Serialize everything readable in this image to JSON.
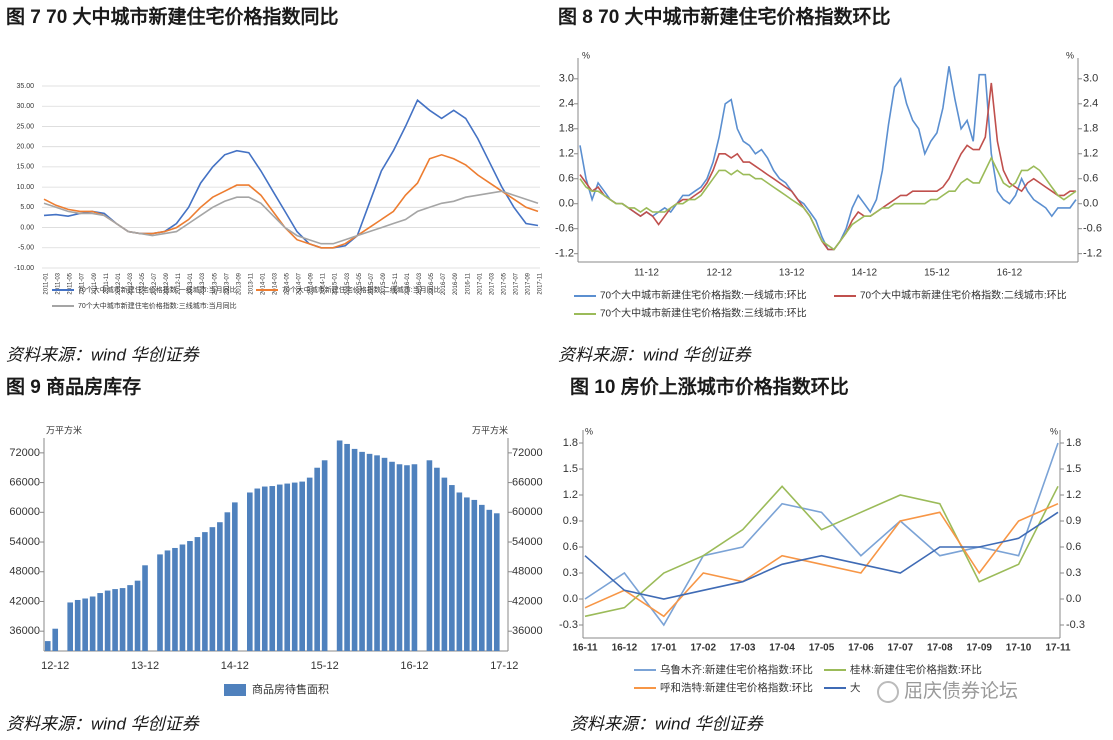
{
  "chart_data": [
    {
      "type": "line",
      "title": "图 7 70 大中城市新建住宅价格指数同比",
      "source": "资料来源：wind  华创证券",
      "grid": true,
      "categories": [
        "2011-01",
        "2011-03",
        "2011-05",
        "2011-07",
        "2011-09",
        "2011-11",
        "2012-01",
        "2012-03",
        "2012-05",
        "2012-07",
        "2012-09",
        "2012-11",
        "2013-01",
        "2013-03",
        "2013-05",
        "2013-07",
        "2013-09",
        "2013-11",
        "2014-01",
        "2014-03",
        "2014-05",
        "2014-07",
        "2014-09",
        "2014-11",
        "2015-01",
        "2015-03",
        "2015-05",
        "2015-07",
        "2015-09",
        "2015-11",
        "2016-01",
        "2016-03",
        "2016-05",
        "2016-07",
        "2016-09",
        "2016-11",
        "2017-01",
        "2017-03",
        "2017-05",
        "2017-07",
        "2017-09",
        "2017-11"
      ],
      "ylim": [
        -10,
        35
      ],
      "yticks": [
        {
          "value": -10,
          "label": "-10.00"
        },
        {
          "value": -5,
          "label": "-5.00"
        },
        {
          "value": 0,
          "label": "0.00"
        },
        {
          "value": 5,
          "label": "5.00"
        },
        {
          "value": 10,
          "label": "10.00"
        },
        {
          "value": 15,
          "label": "15.00"
        },
        {
          "value": 20,
          "label": "20.00"
        },
        {
          "value": 25,
          "label": "25.00"
        },
        {
          "value": 30,
          "label": "30.00"
        },
        {
          "value": 35,
          "label": "35.00"
        }
      ],
      "series": [
        {
          "name": "70个大中城市新建住宅价格指数:一线城市:当月同比",
          "color": "#4472c4",
          "values": [
            3,
            3.2,
            2.8,
            3.5,
            4,
            3.5,
            1,
            -1,
            -1.5,
            -1.5,
            -1,
            1,
            5,
            11,
            15,
            18,
            19,
            18.5,
            14,
            9,
            4,
            -1,
            -4,
            -5,
            -5,
            -4.5,
            -2,
            6,
            14,
            19,
            25,
            31.5,
            29,
            27,
            29,
            27,
            22,
            16,
            10,
            5,
            1,
            0.5
          ]
        },
        {
          "name": "70个大中城市新建住宅价格指数:二线城市:当月同比",
          "color": "#ed7d31",
          "values": [
            7,
            5.5,
            4.5,
            4,
            4,
            3,
            1,
            -1,
            -1.5,
            -1.5,
            -1,
            0,
            2,
            5,
            7.5,
            9,
            10.5,
            10.5,
            8,
            4,
            0,
            -3,
            -4,
            -5,
            -5,
            -4,
            -2,
            0,
            2,
            4,
            8,
            11,
            17,
            18,
            17,
            15.5,
            13,
            11,
            9,
            7,
            5,
            4
          ]
        },
        {
          "name": "70个大中城市新建住宅价格指数:三线城市:当月同比",
          "color": "#a5a5a5",
          "values": [
            6,
            5,
            4,
            3.5,
            3.5,
            3,
            1,
            -1,
            -1.5,
            -2,
            -1.5,
            -1,
            1,
            3,
            5,
            6.5,
            7.5,
            7.5,
            6,
            3,
            0,
            -2,
            -3,
            -4,
            -4,
            -3,
            -2,
            -1,
            0,
            1,
            2,
            4,
            5,
            6,
            6.5,
            7.5,
            8,
            8.5,
            9,
            8,
            7,
            6
          ]
        }
      ]
    },
    {
      "type": "line",
      "title": "图 8 70 大中城市新建住宅价格指数环比",
      "source": "资料来源：wind  华创证券",
      "grid": false,
      "unit": "%",
      "categories": [
        null,
        null,
        null,
        null,
        null,
        null,
        null,
        null,
        null,
        null,
        null,
        "11-12",
        null,
        null,
        null,
        null,
        null,
        null,
        null,
        null,
        null,
        null,
        null,
        "12-12",
        null,
        null,
        null,
        null,
        null,
        null,
        null,
        null,
        null,
        null,
        null,
        "13-12",
        null,
        null,
        null,
        null,
        null,
        null,
        null,
        null,
        null,
        null,
        null,
        "14-12",
        null,
        null,
        null,
        null,
        null,
        null,
        null,
        null,
        null,
        null,
        null,
        "15-12",
        null,
        null,
        null,
        null,
        null,
        null,
        null,
        null,
        null,
        null,
        null,
        "16-12",
        null,
        null,
        null,
        null,
        null,
        null,
        null,
        null,
        null,
        null,
        null
      ],
      "ylim": [
        -1.4,
        3.5
      ],
      "y2lim": [
        -1.4,
        3.5
      ],
      "yticks": [
        -1.2,
        -0.6,
        {
          "value": 0,
          "label": "0.0"
        },
        0.6,
        1.2,
        1.8,
        2.4,
        {
          "value": 3,
          "label": "3.0"
        }
      ],
      "y2ticks": [
        -1.2,
        -0.6,
        {
          "value": 0,
          "label": "0.0"
        },
        0.6,
        1.2,
        1.8,
        2.4,
        {
          "value": 3,
          "label": "3.0"
        }
      ],
      "series": [
        {
          "name": "70个大中城市新建住宅价格指数:一线城市:环比",
          "color": "#5b8fd0",
          "values": [
            1.4,
            0.6,
            0.1,
            0.5,
            0.3,
            0.1,
            0,
            0,
            -0.1,
            -0.2,
            -0.3,
            -0.2,
            -0.3,
            -0.2,
            -0.1,
            -0.2,
            0,
            0.2,
            0.2,
            0.3,
            0.4,
            0.6,
            1.0,
            1.6,
            2.4,
            2.5,
            1.8,
            1.5,
            1.4,
            1.2,
            1.3,
            1.1,
            0.8,
            0.6,
            0.5,
            0.3,
            0.1,
            0,
            -0.2,
            -0.4,
            -0.8,
            -1.1,
            -1.1,
            -0.9,
            -0.6,
            -0.1,
            0.2,
            0,
            -0.2,
            0.1,
            0.8,
            1.9,
            2.8,
            3.0,
            2.4,
            2.0,
            1.8,
            1.2,
            1.5,
            1.7,
            2.3,
            3.3,
            2.5,
            1.8,
            2.0,
            1.5,
            3.1,
            3.1,
            1.2,
            0.3,
            0.1,
            0,
            0.2,
            0.6,
            0.3,
            0.1,
            0,
            -0.1,
            -0.3,
            -0.1,
            -0.1,
            -0.1,
            0.1
          ]
        },
        {
          "name": "70个大中城市新建住宅价格指数:二线城市:环比",
          "color": "#c0504d",
          "values": [
            0.7,
            0.5,
            0.3,
            0.4,
            0.2,
            0.1,
            0,
            0,
            -0.1,
            -0.2,
            -0.3,
            -0.2,
            -0.3,
            -0.5,
            -0.3,
            -0.1,
            0,
            0.1,
            0.1,
            0.2,
            0.3,
            0.5,
            0.8,
            1.2,
            1.2,
            1.1,
            1.2,
            1.0,
            1.0,
            0.9,
            0.8,
            0.7,
            0.6,
            0.5,
            0.4,
            0.3,
            0.1,
            -0.1,
            -0.3,
            -0.6,
            -0.9,
            -1.1,
            -1.1,
            -0.9,
            -0.7,
            -0.4,
            -0.2,
            -0.3,
            -0.3,
            -0.2,
            -0.1,
            0,
            0.1,
            0.2,
            0.2,
            0.3,
            0.3,
            0.3,
            0.3,
            0.3,
            0.4,
            0.6,
            0.9,
            1.2,
            1.4,
            1.3,
            1.3,
            1.6,
            2.9,
            1.5,
            0.8,
            0.5,
            0.4,
            0.3,
            0.5,
            0.6,
            0.5,
            0.4,
            0.3,
            0.2,
            0.2,
            0.3,
            0.3
          ]
        },
        {
          "name": "70个大中城市新建住宅价格指数:三线城市:环比",
          "color": "#9bbb59",
          "values": [
            0.6,
            0.4,
            0.3,
            0.3,
            0.2,
            0.1,
            0,
            0,
            -0.1,
            -0.1,
            -0.2,
            -0.1,
            -0.2,
            -0.2,
            -0.2,
            -0.1,
            0,
            0,
            0.1,
            0.1,
            0.2,
            0.4,
            0.6,
            0.8,
            0.8,
            0.7,
            0.8,
            0.7,
            0.7,
            0.6,
            0.6,
            0.5,
            0.4,
            0.3,
            0.2,
            0.1,
            0,
            -0.1,
            -0.3,
            -0.6,
            -0.9,
            -1.0,
            -1.1,
            -0.9,
            -0.7,
            -0.5,
            -0.4,
            -0.3,
            -0.3,
            -0.2,
            -0.1,
            -0.1,
            0,
            0,
            0,
            0,
            0,
            0,
            0.1,
            0.1,
            0.2,
            0.3,
            0.3,
            0.5,
            0.6,
            0.5,
            0.5,
            0.8,
            1.1,
            0.8,
            0.5,
            0.4,
            0.5,
            0.8,
            0.8,
            0.9,
            0.8,
            0.6,
            0.4,
            0.2,
            0.1,
            0.2,
            0.3
          ]
        }
      ]
    },
    {
      "type": "bar",
      "title": "图 9  商品房库存",
      "source": "资料来源：wind  华创证券",
      "grid": false,
      "unit": "万平方米",
      "categories": [
        null,
        "12-12",
        null,
        null,
        null,
        null,
        null,
        null,
        null,
        null,
        null,
        null,
        null,
        "13-12",
        null,
        null,
        null,
        null,
        null,
        null,
        null,
        null,
        null,
        null,
        null,
        "14-12",
        null,
        null,
        null,
        null,
        null,
        null,
        null,
        null,
        null,
        null,
        null,
        "15-12",
        null,
        null,
        null,
        null,
        null,
        null,
        null,
        null,
        null,
        null,
        null,
        "16-12",
        null,
        null,
        null,
        null,
        null,
        null,
        null,
        null,
        null,
        null,
        null,
        "17-12"
      ],
      "ylim": [
        32000,
        75000
      ],
      "y2lim": [
        32000,
        75000
      ],
      "yticks": [
        36000,
        42000,
        48000,
        54000,
        60000,
        66000,
        72000
      ],
      "y2ticks": [
        36000,
        42000,
        48000,
        54000,
        60000,
        66000,
        72000
      ],
      "series": [
        {
          "name": "商品房待售面积",
          "color": "#4f81bd",
          "values": [
            34000,
            36500,
            null,
            41800,
            42300,
            42600,
            43000,
            43700,
            44200,
            44500,
            44700,
            45300,
            46200,
            49300,
            null,
            51500,
            52300,
            52800,
            53500,
            54200,
            55000,
            56000,
            57000,
            58000,
            60000,
            62000,
            null,
            64000,
            64800,
            65200,
            65300,
            65600,
            65800,
            66000,
            66200,
            67000,
            69000,
            70500,
            null,
            74500,
            73800,
            72800,
            72200,
            71800,
            71500,
            71000,
            70200,
            69700,
            69500,
            69700,
            null,
            70500,
            69000,
            67000,
            65500,
            64000,
            63000,
            62500,
            61500,
            60500,
            59800,
            null
          ]
        }
      ]
    },
    {
      "type": "line",
      "title": "图 10  房价上涨城市价格指数环比",
      "source": "资料来源：wind  华创证券",
      "grid": false,
      "unit": "%",
      "categories": [
        "16-11",
        "16-12",
        "17-01",
        "17-02",
        "17-03",
        "17-04",
        "17-05",
        "17-06",
        "17-07",
        "17-08",
        "17-09",
        "17-10",
        "17-11"
      ],
      "ylim": [
        -0.45,
        1.95
      ],
      "y2lim": [
        -0.45,
        1.95
      ],
      "yticks": [
        -0.3,
        {
          "value": 0,
          "label": "0.0"
        },
        0.3,
        0.6,
        0.9,
        1.2,
        1.5,
        1.8
      ],
      "y2ticks": [
        -0.3,
        {
          "value": 0,
          "label": "0.0"
        },
        0.3,
        0.6,
        0.9,
        1.2,
        1.5,
        1.8
      ],
      "series": [
        {
          "name": "乌鲁木齐:新建住宅价格指数:环比",
          "color": "#7ba3d6",
          "values": [
            0.0,
            0.3,
            -0.3,
            0.5,
            0.6,
            1.1,
            1.0,
            0.5,
            0.9,
            0.5,
            0.6,
            0.5,
            1.8
          ]
        },
        {
          "name": "桂林:新建住宅价格指数:环比",
          "color": "#9bbb59",
          "values": [
            -0.2,
            -0.1,
            0.3,
            0.5,
            0.8,
            1.3,
            0.8,
            1.0,
            1.2,
            1.1,
            0.2,
            0.4,
            1.3
          ]
        },
        {
          "name": "呼和浩特:新建住宅价格指数:环比",
          "color": "#f79646",
          "values": [
            -0.1,
            0.1,
            -0.2,
            0.3,
            0.2,
            0.5,
            0.4,
            0.3,
            0.9,
            1.0,
            0.3,
            0.9,
            1.1
          ]
        },
        {
          "name": "大",
          "color": "#3f6bb5",
          "values": [
            0.5,
            0.1,
            0.0,
            0.1,
            0.2,
            0.4,
            0.5,
            0.4,
            0.3,
            0.6,
            0.6,
            0.7,
            1.0
          ]
        }
      ]
    }
  ],
  "watermark": "屈庆债券论坛"
}
